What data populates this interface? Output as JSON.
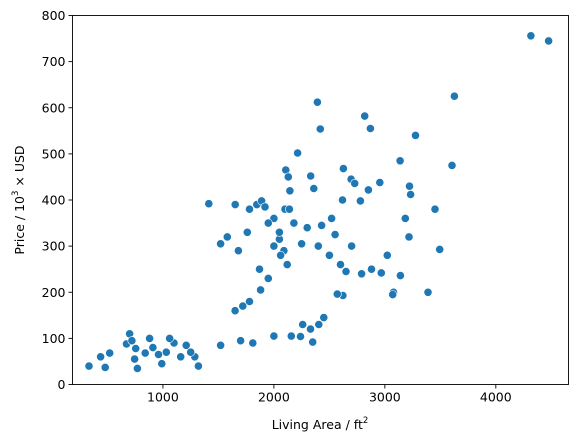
{
  "chart_data": {
    "type": "scatter",
    "title": "",
    "xlabel": "Living Area / ft",
    "xlabel_sup": "2",
    "ylabel_prefix": "Price / 10",
    "ylabel_sup": "3",
    "ylabel_suffix": " × USD",
    "xlim": [
      185,
      4655
    ],
    "ylim": [
      0,
      800
    ],
    "xticks": [
      1000,
      2000,
      3000,
      4000
    ],
    "xtick_labels": [
      "1000",
      "2000",
      "3000",
      "4000"
    ],
    "yticks": [
      0,
      100,
      200,
      300,
      400,
      500,
      600,
      700,
      800
    ],
    "ytick_labels": [
      "0",
      "100",
      "200",
      "300",
      "400",
      "500",
      "600",
      "700",
      "800"
    ],
    "grid": false,
    "marker_color": "#1f77b4",
    "marker_edge_color": "#ffffff",
    "points": [
      [
        334,
        40
      ],
      [
        438,
        60
      ],
      [
        480,
        37
      ],
      [
        520,
        68
      ],
      [
        672,
        88
      ],
      [
        700,
        110
      ],
      [
        720,
        95
      ],
      [
        745,
        55
      ],
      [
        755,
        78
      ],
      [
        770,
        35
      ],
      [
        4316,
        756
      ],
      [
        4476,
        745
      ],
      [
        3627,
        625
      ],
      [
        2392,
        612
      ],
      [
        2418,
        554
      ],
      [
        2818,
        582
      ],
      [
        2870,
        555
      ],
      [
        3276,
        540
      ],
      [
        3137,
        485
      ],
      [
        3605,
        475
      ],
      [
        2214,
        502
      ],
      [
        2626,
        468
      ],
      [
        2107,
        465
      ],
      [
        2130,
        450
      ],
      [
        2332,
        452
      ],
      [
        2696,
        445
      ],
      [
        2728,
        436
      ],
      [
        2954,
        438
      ],
      [
        2852,
        422
      ],
      [
        3222,
        430
      ],
      [
        3232,
        412
      ],
      [
        2144,
        420
      ],
      [
        2360,
        425
      ],
      [
        2618,
        400
      ],
      [
        2780,
        398
      ],
      [
        3452,
        380
      ],
      [
        3184,
        360
      ],
      [
        3218,
        320
      ],
      [
        2552,
        325
      ],
      [
        1413,
        392
      ],
      [
        1651,
        390
      ],
      [
        1846,
        390
      ],
      [
        1889,
        398
      ],
      [
        1920,
        385
      ],
      [
        1780,
        380
      ],
      [
        3494,
        293
      ],
      [
        3389,
        200
      ],
      [
        3078,
        200
      ],
      [
        3071,
        195
      ],
      [
        2968,
        242
      ],
      [
        2622,
        193
      ],
      [
        2571,
        196
      ],
      [
        3140,
        236
      ],
      [
        2880,
        250
      ],
      [
        2790,
        240
      ],
      [
        2650,
        245
      ],
      [
        2240,
        104
      ],
      [
        2350,
        92
      ],
      [
        2330,
        120
      ],
      [
        2157,
        105
      ],
      [
        2405,
        130
      ],
      [
        2450,
        145
      ],
      [
        2260,
        130
      ],
      [
        2000,
        105
      ],
      [
        1810,
        90
      ],
      [
        1700,
        95
      ],
      [
        1520,
        85
      ],
      [
        1320,
        40
      ],
      [
        1287,
        60
      ],
      [
        1250,
        70
      ],
      [
        3022,
        280
      ],
      [
        2520,
        360
      ],
      [
        2430,
        345
      ],
      [
        2300,
        340
      ],
      [
        2180,
        350
      ],
      [
        2050,
        315
      ],
      [
        2000,
        300
      ],
      [
        2100,
        380
      ],
      [
        2000,
        360
      ],
      [
        1950,
        350
      ],
      [
        1760,
        330
      ],
      [
        1580,
        320
      ],
      [
        1520,
        305
      ],
      [
        1680,
        290
      ],
      [
        2090,
        290
      ],
      [
        2250,
        305
      ],
      [
        2400,
        300
      ],
      [
        2500,
        280
      ],
      [
        2600,
        260
      ],
      [
        2700,
        300
      ],
      [
        1100,
        90
      ],
      [
        1060,
        100
      ],
      [
        1030,
        70
      ],
      [
        960,
        65
      ],
      [
        910,
        80
      ],
      [
        840,
        68
      ],
      [
        880,
        100
      ],
      [
        990,
        45
      ],
      [
        1160,
        60
      ],
      [
        1210,
        85
      ],
      [
        2140,
        380
      ],
      [
        2050,
        330
      ],
      [
        2060,
        280
      ],
      [
        2120,
        260
      ],
      [
        1870,
        250
      ],
      [
        1950,
        230
      ],
      [
        1880,
        205
      ],
      [
        1780,
        180
      ],
      [
        1720,
        170
      ],
      [
        1650,
        160
      ]
    ]
  }
}
